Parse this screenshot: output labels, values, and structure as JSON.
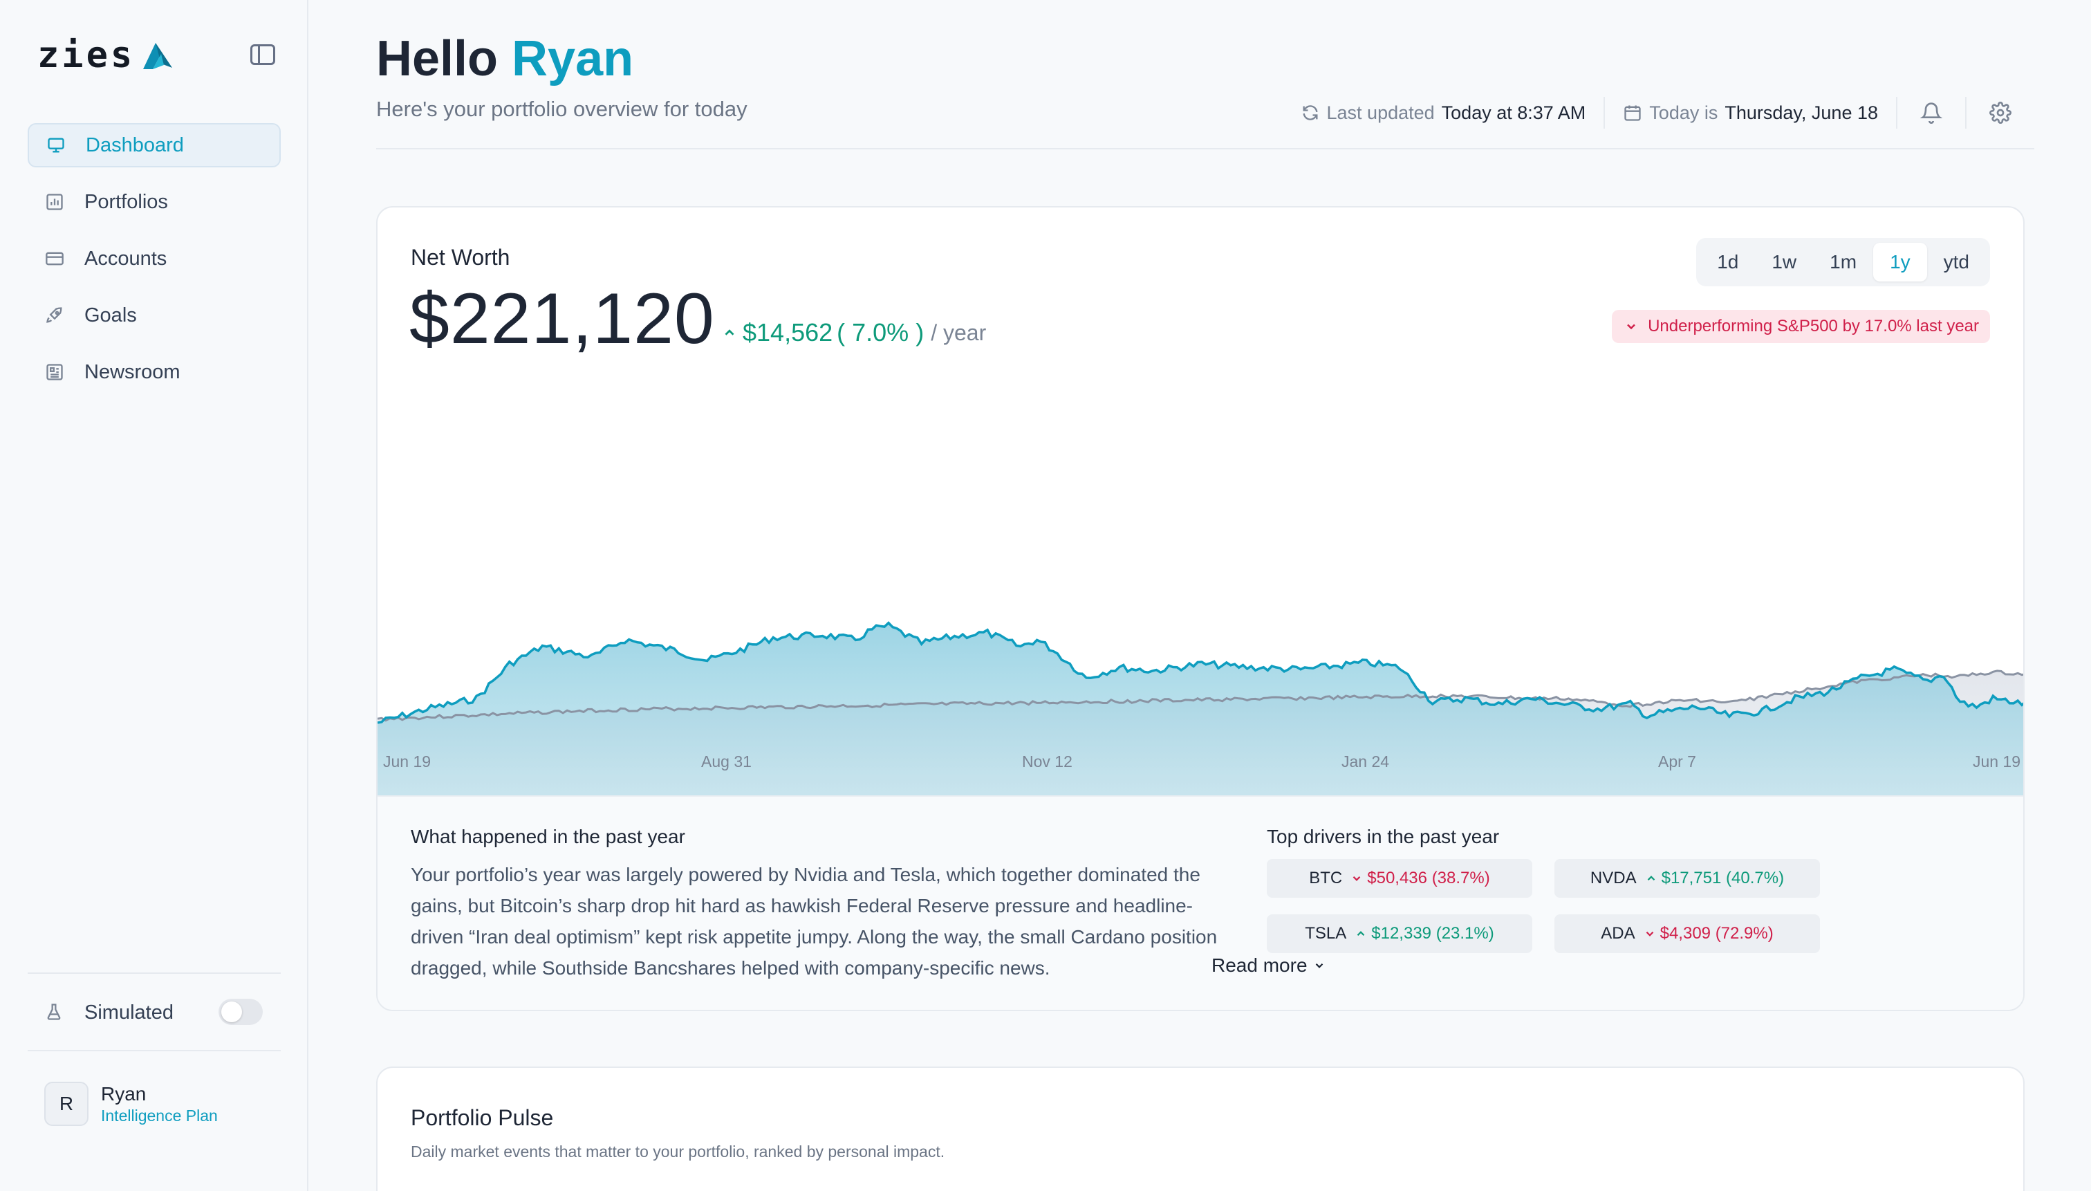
{
  "sidebar": {
    "logo_text": "zies",
    "items": [
      {
        "label": "Dashboard",
        "icon": "monitor-icon",
        "active": true
      },
      {
        "label": "Portfolios",
        "icon": "bar-chart-icon"
      },
      {
        "label": "Accounts",
        "icon": "credit-card-icon"
      },
      {
        "label": "Goals",
        "icon": "rocket-icon"
      },
      {
        "label": "Newsroom",
        "icon": "newspaper-icon"
      }
    ],
    "simulated_label": "Simulated",
    "simulated_on": false,
    "user": {
      "initial": "R",
      "name": "Ryan",
      "plan": "Intelligence Plan"
    }
  },
  "header": {
    "greeting": "Hello",
    "name": "Ryan",
    "subtitle": "Here's your portfolio overview for today",
    "last_updated_label": "Last updated",
    "last_updated_value": "Today at 8:37 AM",
    "today_label": "Today is",
    "today_value": "Thursday, June 18"
  },
  "net_worth": {
    "label": "Net Worth",
    "value": "$221,120",
    "change": "$14,562",
    "change_pct": "( 7.0% )",
    "period": "/ year",
    "ranges": [
      "1d",
      "1w",
      "1m",
      "1y",
      "ytd"
    ],
    "active_range": "1y",
    "alert": "Underperforming S&P500 by 17.0% last year"
  },
  "chart_data": {
    "type": "area",
    "x_labels": [
      "Jun 19",
      "Aug 31",
      "Nov 12",
      "Jan 24",
      "Apr 7",
      "Jun 19"
    ],
    "series": [],
    "colors": {
      "portfolio": "#0e9dbf",
      "benchmark": "#8a93a3"
    }
  },
  "summary": {
    "title": "What happened in the past year",
    "text": "Your portfolio’s year was largely powered by Nvidia and Tesla, which together dominated the gains, but Bitcoin’s sharp drop hit hard as hawkish Federal Reserve pressure and headline-driven “Iran deal optimism” kept risk appetite jumpy. Along the way, the small Cardano position dragged, while Southside Bancshares helped with company-specific news.",
    "read_more": "Read more"
  },
  "drivers": {
    "title": "Top drivers in the past year",
    "items": [
      {
        "ticker": "BTC",
        "value": "$50,436",
        "pct": "(38.7%)",
        "direction": "down"
      },
      {
        "ticker": "NVDA",
        "value": "$17,751",
        "pct": "(40.7%)",
        "direction": "up"
      },
      {
        "ticker": "TSLA",
        "value": "$12,339",
        "pct": "(23.1%)",
        "direction": "up"
      },
      {
        "ticker": "ADA",
        "value": "$4,309",
        "pct": "(72.9%)",
        "direction": "down"
      }
    ]
  },
  "pulse": {
    "title": "Portfolio Pulse",
    "subtitle": "Daily market events that matter to your portfolio, ranked by personal impact."
  }
}
